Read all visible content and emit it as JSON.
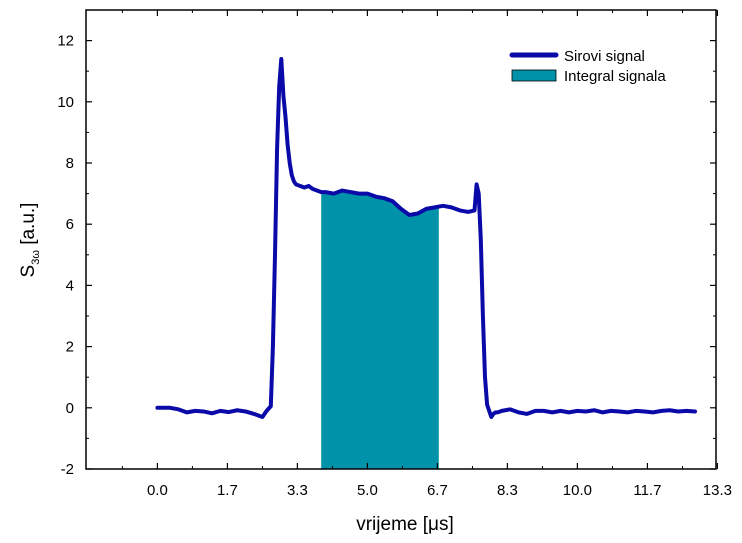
{
  "chart_data": {
    "type": "line",
    "xlabel_prefix": "vrijeme [",
    "xlabel_unit": "μs",
    "xlabel_suffix": "]",
    "ylabel_main": "S",
    "ylabel_sub": "3ω",
    "ylabel_suffix": " [a.u.]",
    "xlim": [
      -1.7,
      13.3
    ],
    "ylim": [
      -2,
      13
    ],
    "x_ticks": [
      "0.0",
      "1.7",
      "3.3",
      "5.0",
      "6.7",
      "8.3",
      "10.0",
      "11.7",
      "13.3"
    ],
    "x_tick_values": [
      0,
      1.667,
      3.333,
      5.0,
      6.667,
      8.333,
      10.0,
      11.667,
      13.333
    ],
    "y_ticks": [
      "-2",
      "0",
      "2",
      "4",
      "6",
      "8",
      "10",
      "12"
    ],
    "y_tick_values": [
      -2,
      0,
      2,
      4,
      6,
      8,
      10,
      12
    ],
    "legend_position": "top-right",
    "series": [
      {
        "name": "Sirovi signal",
        "kind": "line",
        "color": "#0a0aa8",
        "x": [
          0.0,
          0.3,
          0.5,
          0.7,
          0.9,
          1.1,
          1.3,
          1.5,
          1.7,
          1.9,
          2.1,
          2.3,
          2.5,
          2.6,
          2.7,
          2.75,
          2.8,
          2.85,
          2.9,
          2.95,
          3.0,
          3.05,
          3.1,
          3.15,
          3.2,
          3.25,
          3.3,
          3.4,
          3.5,
          3.6,
          3.7,
          3.8,
          3.9,
          4.0,
          4.2,
          4.4,
          4.6,
          4.8,
          5.0,
          5.2,
          5.4,
          5.6,
          5.8,
          6.0,
          6.2,
          6.4,
          6.6,
          6.8,
          7.0,
          7.2,
          7.4,
          7.55,
          7.6,
          7.65,
          7.7,
          7.75,
          7.8,
          7.85,
          7.9,
          7.95,
          8.0,
          8.05,
          8.1,
          8.2,
          8.4,
          8.6,
          8.8,
          9.0,
          9.2,
          9.4,
          9.6,
          9.8,
          10.0,
          10.2,
          10.4,
          10.6,
          10.8,
          11.0,
          11.2,
          11.4,
          11.6,
          11.8,
          12.0,
          12.2,
          12.4,
          12.6,
          12.8
        ],
        "y": [
          0.0,
          0.0,
          -0.05,
          -0.15,
          -0.1,
          -0.12,
          -0.18,
          -0.1,
          -0.14,
          -0.08,
          -0.12,
          -0.2,
          -0.3,
          -0.1,
          0.05,
          2.0,
          5.0,
          8.5,
          10.5,
          11.4,
          10.2,
          9.5,
          8.6,
          8.0,
          7.6,
          7.4,
          7.3,
          7.25,
          7.2,
          7.25,
          7.15,
          7.1,
          7.05,
          7.05,
          7.0,
          7.1,
          7.05,
          7.0,
          7.0,
          6.9,
          6.85,
          6.75,
          6.5,
          6.3,
          6.35,
          6.5,
          6.55,
          6.6,
          6.55,
          6.45,
          6.4,
          6.45,
          7.3,
          7.0,
          5.5,
          3.0,
          1.0,
          0.1,
          -0.1,
          -0.3,
          -0.2,
          -0.15,
          -0.15,
          -0.1,
          -0.05,
          -0.15,
          -0.2,
          -0.1,
          -0.1,
          -0.15,
          -0.1,
          -0.15,
          -0.1,
          -0.12,
          -0.08,
          -0.15,
          -0.1,
          -0.12,
          -0.15,
          -0.1,
          -0.12,
          -0.15,
          -0.1,
          -0.08,
          -0.12,
          -0.1,
          -0.12
        ]
      },
      {
        "name": "Integral signala",
        "kind": "fill",
        "color": "#0092a8",
        "fill_from_x": 3.9,
        "fill_to_x": 6.7
      }
    ]
  }
}
